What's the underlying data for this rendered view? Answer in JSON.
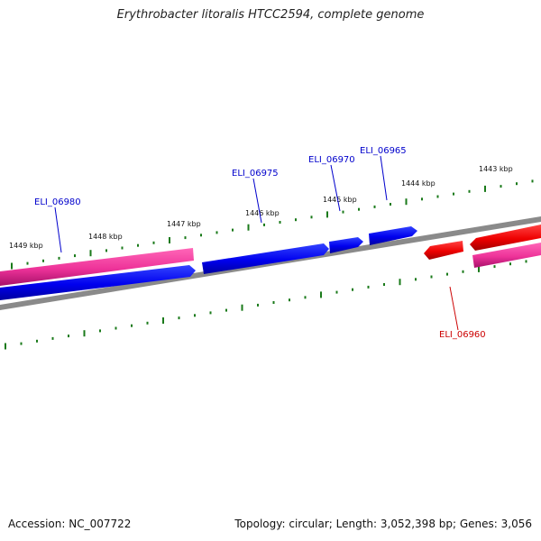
{
  "header": {
    "title": "Erythrobacter litoralis HTCC2594, complete genome"
  },
  "footer": {
    "accession": "Accession: NC_007722",
    "stats": "Topology: circular; Length: 3,052,398 bp; Genes: 3,056"
  },
  "ruler": {
    "labels": [
      "1449 kbp",
      "1448 kbp",
      "1447 kbp",
      "1446 kbp",
      "1445 kbp",
      "1444 kbp",
      "1443 kbp"
    ]
  },
  "genes": [
    {
      "id": "ELI_06980",
      "color": "#0000cc"
    },
    {
      "id": "ELI_06975",
      "color": "#0000cc"
    },
    {
      "id": "ELI_06970",
      "color": "#0000cc"
    },
    {
      "id": "ELI_06965",
      "color": "#0000cc"
    },
    {
      "id": "ELI_06960",
      "color": "#cc0000"
    }
  ],
  "colors": {
    "forward_cds": "#0000ee",
    "reverse_cds": "#ee0000",
    "gene_track": "#ee3399",
    "backbone": "#888888",
    "ticks": "#1a7a1a"
  }
}
